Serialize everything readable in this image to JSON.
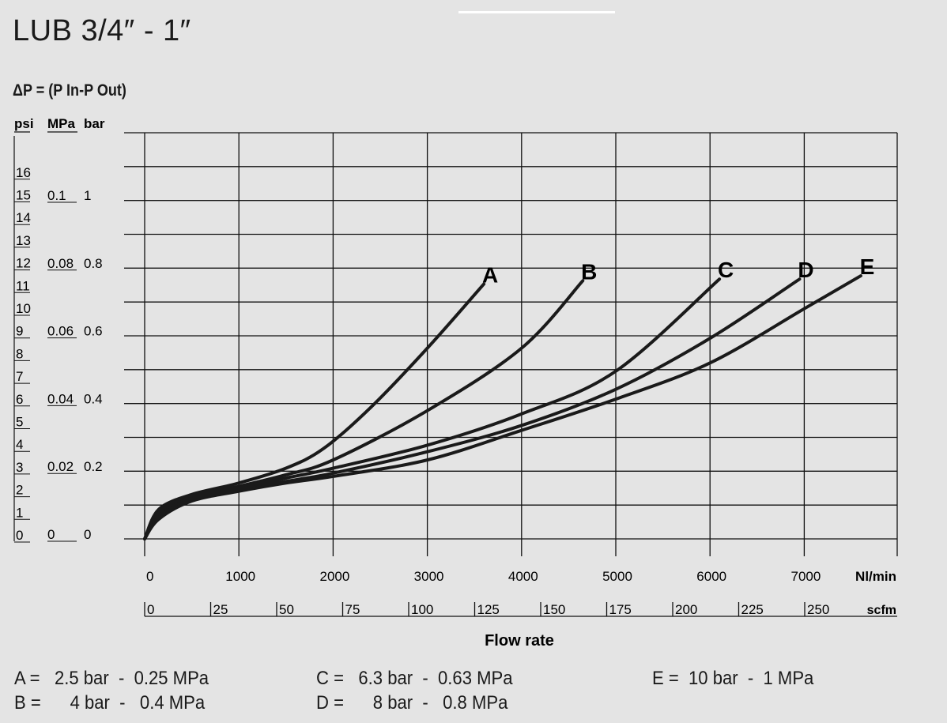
{
  "title": "LUB 3/4″ - 1″",
  "pressure_label": "ΔP = (P In-P Out)",
  "units": {
    "psi": "psi",
    "mpa": "MPa",
    "bar": "bar"
  },
  "legend": [
    {
      "letter": "A",
      "text": "A =   2.5 bar  -  0.25 MPa"
    },
    {
      "letter": "B",
      "text": "B =      4 bar  -   0.4 MPa"
    },
    {
      "letter": "C",
      "text": "C =   6.3 bar  -  0.63 MPa"
    },
    {
      "letter": "D",
      "text": "D =      8 bar  -   0.8 MPa"
    },
    {
      "letter": "E",
      "text": "E =  10 bar  -  1 MPa"
    }
  ],
  "chart_data": {
    "type": "line",
    "title": "",
    "xlabel": "Flow rate",
    "ylabel": "ΔP = (P In-P Out)",
    "x_unit": "Nl/min",
    "x_unit_secondary": "scfm",
    "xlim": [
      0,
      8000
    ],
    "ylim_psi": [
      0,
      16
    ],
    "x_ticks": [
      "0",
      "1000",
      "2000",
      "3000",
      "4000",
      "5000",
      "6000",
      "7000"
    ],
    "x2_ticks": [
      "0",
      "25",
      "50",
      "75",
      "100",
      "125",
      "150",
      "175",
      "200",
      "225",
      "250"
    ],
    "y_psi_ticks": [
      "0",
      "1",
      "2",
      "3",
      "4",
      "5",
      "6",
      "7",
      "8",
      "9",
      "10",
      "11",
      "12",
      "13",
      "14",
      "15",
      "16"
    ],
    "y_mpa_ticks": [
      "0",
      "0.02",
      "0.04",
      "0.06",
      "0.08",
      "0.1"
    ],
    "y_bar_ticks": [
      "0",
      "0.2",
      "0.4",
      "0.6",
      "0.8",
      "1"
    ],
    "grid": true,
    "series": [
      {
        "name": "A",
        "x": [
          0,
          150,
          500,
          1000,
          1500,
          1900,
          2400,
          3000,
          3600
        ],
        "y": [
          0,
          0.09,
          0.135,
          0.17,
          0.215,
          0.275,
          0.4,
          0.58,
          0.775
        ]
      },
      {
        "name": "B",
        "x": [
          0,
          150,
          500,
          1000,
          1500,
          2000,
          3000,
          4000,
          4650
        ],
        "y": [
          0,
          0.08,
          0.13,
          0.16,
          0.195,
          0.24,
          0.39,
          0.58,
          0.785
        ]
      },
      {
        "name": "C",
        "x": [
          0,
          150,
          500,
          1000,
          1500,
          2000,
          3000,
          4000,
          5000,
          6100
        ],
        "y": [
          0,
          0.07,
          0.125,
          0.155,
          0.185,
          0.215,
          0.285,
          0.38,
          0.51,
          0.79
        ]
      },
      {
        "name": "D",
        "x": [
          0,
          150,
          500,
          1000,
          1500,
          2000,
          3000,
          4000,
          5000,
          6000,
          6950
        ],
        "y": [
          0,
          0.065,
          0.12,
          0.15,
          0.175,
          0.2,
          0.265,
          0.345,
          0.455,
          0.61,
          0.79
        ]
      },
      {
        "name": "E",
        "x": [
          0,
          150,
          500,
          1000,
          1500,
          2000,
          3000,
          4000,
          5000,
          6000,
          7000,
          7600
        ],
        "y": [
          0,
          0.06,
          0.115,
          0.145,
          0.17,
          0.19,
          0.24,
          0.33,
          0.425,
          0.535,
          0.7,
          0.8
        ]
      }
    ]
  }
}
